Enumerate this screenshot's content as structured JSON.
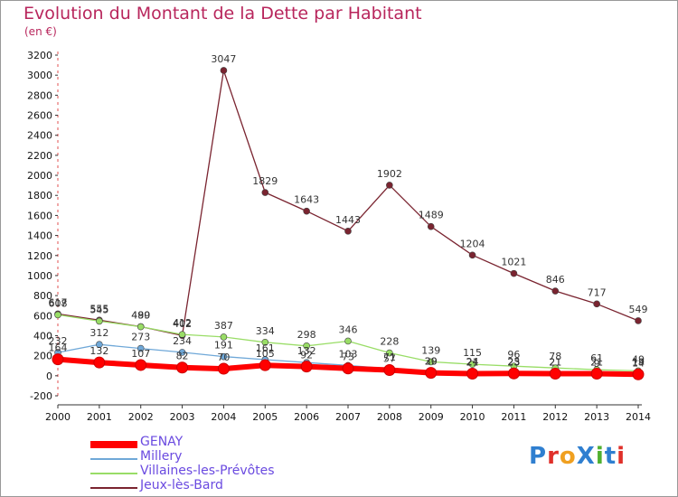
{
  "title": "Evolution du Montant de la Dette par Habitant",
  "unit": "(en €)",
  "logo_text": "ProXiti",
  "logo_colors": [
    "#2f7fd0",
    "#e0302a",
    "#f0a020",
    "#2f7fd0",
    "#50b030",
    "#2f7fd0",
    "#e0302a"
  ],
  "chart_data": {
    "type": "line",
    "x": [
      2000,
      2001,
      2002,
      2003,
      2004,
      2005,
      2006,
      2007,
      2008,
      2009,
      2010,
      2011,
      2012,
      2013,
      2014
    ],
    "ylim": [
      -200,
      3200
    ],
    "yticks": [
      -200,
      0,
      200,
      400,
      600,
      800,
      1000,
      1200,
      1400,
      1600,
      1800,
      2000,
      2200,
      2400,
      2600,
      2800,
      3000,
      3200
    ],
    "grid": false,
    "legend_position": "bottom-left",
    "series": [
      {
        "name": "GENAY",
        "color": "#ff0000",
        "values": [
          164,
          132,
          107,
          82,
          70,
          105,
          92,
          73,
          57,
          29,
          21,
          23,
          21,
          21,
          14
        ],
        "labels": [
          "164",
          "132",
          "107",
          "82",
          "70",
          "105",
          "92",
          "73",
          "57",
          "29",
          "21",
          "23",
          "21",
          "21",
          "14"
        ]
      },
      {
        "name": "Millery",
        "color": "#6fa8d8",
        "values": [
          232,
          312,
          273,
          234,
          191,
          161,
          132,
          103,
          71,
          30,
          24,
          25,
          21,
          9,
          19
        ],
        "labels": [
          "232",
          "312",
          "273",
          "234",
          "191",
          "161",
          "132",
          "103",
          "71",
          "30",
          "24",
          "25",
          "21",
          "9",
          "19"
        ]
      },
      {
        "name": "Villaines-les-Prévôtes",
        "color": "#99dd66",
        "values": [
          608,
          545,
          489,
          412,
          387,
          334,
          298,
          346,
          228,
          139,
          115,
          96,
          78,
          61,
          49
        ],
        "labels": [
          "608",
          "545",
          "489",
          "412",
          "387",
          "334",
          "298",
          "346",
          "228",
          "139",
          "115",
          "96",
          "78",
          "61",
          "49"
        ]
      },
      {
        "name": "Jeux-lès-Bard",
        "color": "#7a2430",
        "values": [
          617,
          555,
          490,
          402,
          3047,
          1829,
          1643,
          1443,
          1902,
          1489,
          1204,
          1021,
          846,
          717,
          549
        ],
        "labels": [
          "617",
          "555",
          "490",
          "402",
          "3047",
          "1829",
          "1643",
          "1443",
          "1902",
          "1489",
          "1204",
          "1021",
          "846",
          "717",
          "549"
        ]
      }
    ]
  }
}
